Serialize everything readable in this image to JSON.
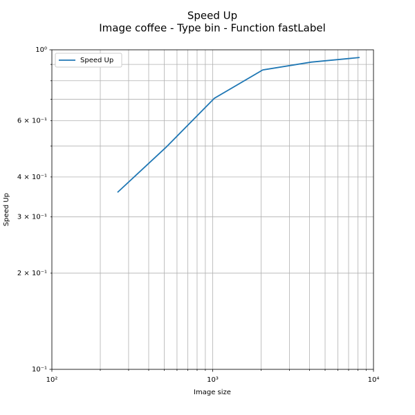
{
  "chart_data": {
    "type": "line",
    "title": "Speed Up",
    "subtitle": "Image coffee - Type bin - Function fastLabel",
    "xlabel": "Image size",
    "ylabel": "Speed Up",
    "x": [
      256,
      512,
      1024,
      2048,
      4096,
      8192
    ],
    "series": [
      {
        "name": "Speed Up",
        "color": "#1f77b4",
        "values": [
          0.358,
          0.495,
          0.705,
          0.865,
          0.915,
          0.946
        ]
      }
    ],
    "xscale": "log",
    "yscale": "log",
    "xlim": [
      100,
      10000
    ],
    "ylim": [
      0.1,
      1
    ],
    "xticks": [
      {
        "value": 100,
        "label": "10²"
      },
      {
        "value": 1000,
        "label": "10³"
      },
      {
        "value": 10000,
        "label": "10⁴"
      }
    ],
    "xminorticks": [
      200,
      300,
      400,
      500,
      600,
      700,
      800,
      900,
      2000,
      3000,
      4000,
      5000,
      6000,
      7000,
      8000,
      9000
    ],
    "yticks": [
      {
        "value": 0.1,
        "label": "10⁻¹"
      },
      {
        "value": 1,
        "label": "10⁰"
      }
    ],
    "yminorticks": [
      {
        "value": 0.2,
        "label": "2 × 10⁻¹"
      },
      {
        "value": 0.3,
        "label": "3 × 10⁻¹"
      },
      {
        "value": 0.4,
        "label": "4 × 10⁻¹"
      },
      0.5,
      {
        "value": 0.6,
        "label": "6 × 10⁻¹"
      },
      0.7,
      0.8,
      0.9
    ],
    "grid": true,
    "legend": "upper left"
  }
}
